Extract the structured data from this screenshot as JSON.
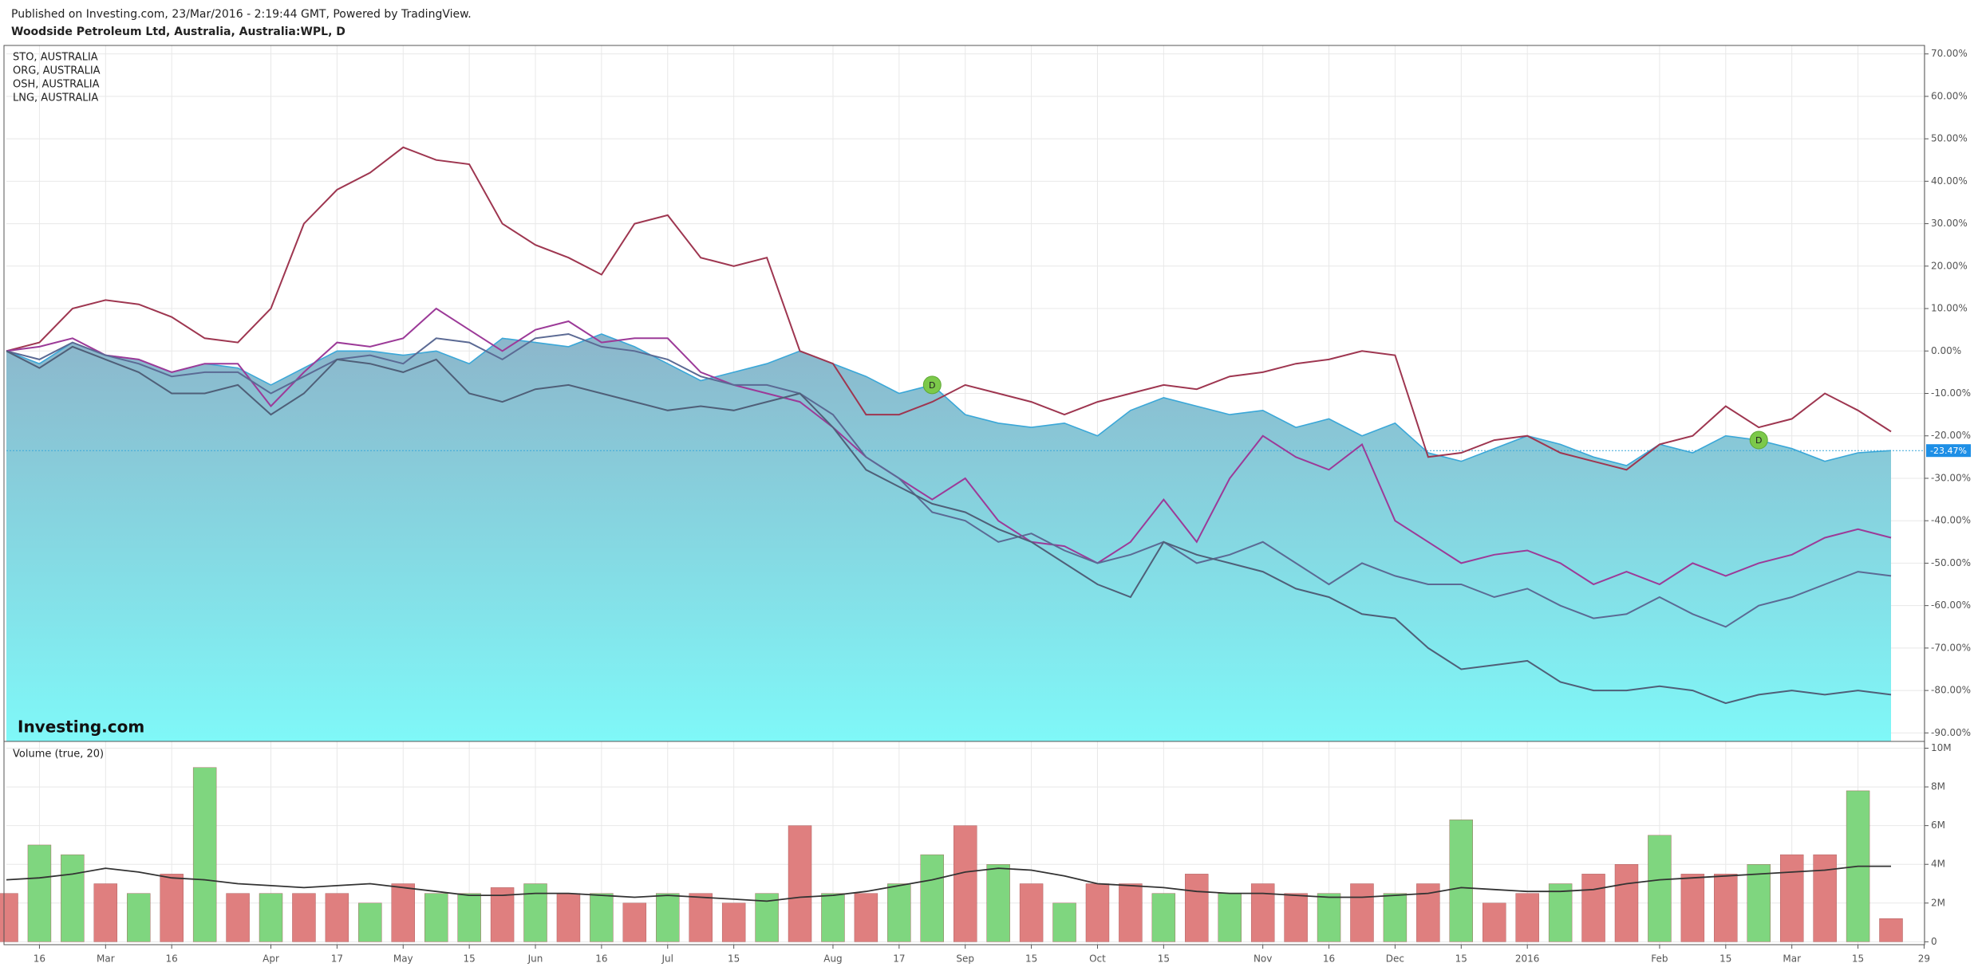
{
  "header": {
    "published": "Published on Investing.com, 23/Mar/2016 - 2:19:44 GMT, Powered by TradingView.",
    "title": "Woodside Petroleum Ltd, Australia, Australia:WPL, D"
  },
  "chart_data": [
    {
      "type": "line",
      "watermark": "Investing.com",
      "grid": true,
      "categories": [
        null,
        "16",
        null,
        "Mar",
        null,
        "16",
        null,
        null,
        "Apr",
        null,
        "17",
        null,
        "May",
        null,
        "15",
        null,
        "Jun",
        null,
        "16",
        null,
        "Jul",
        null,
        "15",
        null,
        null,
        "Aug",
        null,
        "17",
        null,
        "Sep",
        null,
        "15",
        null,
        "Oct",
        null,
        "15",
        null,
        null,
        "Nov",
        null,
        "16",
        null,
        "Dec",
        null,
        "15",
        null,
        "2016",
        null,
        null,
        null,
        "Feb",
        null,
        "15",
        null,
        "Mar",
        null,
        "15",
        null,
        "29"
      ],
      "ylim": [
        -92,
        72
      ],
      "yticks": [
        {
          "value": 70,
          "label": "70.00%"
        },
        {
          "value": 60,
          "label": "60.00%"
        },
        {
          "value": 50,
          "label": "50.00%"
        },
        {
          "value": 40,
          "label": "40.00%"
        },
        {
          "value": 30,
          "label": "30.00%"
        },
        {
          "value": 20,
          "label": "20.00%"
        },
        {
          "value": 10,
          "label": "10.00%"
        },
        {
          "value": 0,
          "label": "0.00%"
        },
        {
          "value": -10,
          "label": "-10.00%"
        },
        {
          "value": -20,
          "label": "-20.00%"
        },
        {
          "value": -30,
          "label": "-30.00%"
        },
        {
          "value": -40,
          "label": "-40.00%"
        },
        {
          "value": -50,
          "label": "-50.00%"
        },
        {
          "value": -60,
          "label": "-60.00%"
        },
        {
          "value": -70,
          "label": "-70.00%"
        },
        {
          "value": -80,
          "label": "-80.00%"
        },
        {
          "value": -90,
          "label": "-90.00%"
        }
      ],
      "series": [
        {
          "color": "#3aa7d8",
          "area": true,
          "last_label": "-23.47%",
          "values": [
            0,
            -3,
            2,
            -1,
            -2,
            -5,
            -3,
            -4,
            -8,
            -4,
            0,
            0,
            -1,
            0,
            -3,
            3,
            2,
            1,
            4,
            1,
            -3,
            -7,
            -5,
            -3,
            0,
            -3,
            -6,
            -10,
            -8,
            -15,
            -17,
            -18,
            -17,
            -20,
            -14,
            -11,
            -13,
            -15,
            -14,
            -18,
            -16,
            -20,
            -17,
            -24,
            -26,
            -23,
            -20,
            -22,
            -25,
            -27,
            -22,
            -24,
            -20,
            -21,
            -23,
            -26,
            -24,
            -23.47,
            null
          ],
          "markers": [
            null,
            null,
            null,
            null,
            null,
            null,
            null,
            null,
            null,
            null,
            null,
            null,
            null,
            null,
            null,
            null,
            null,
            null,
            null,
            null,
            null,
            null,
            null,
            null,
            null,
            null,
            null,
            null,
            "D",
            null,
            null,
            null,
            null,
            null,
            null,
            null,
            null,
            null,
            null,
            null,
            null,
            null,
            null,
            null,
            null,
            null,
            null,
            null,
            null,
            null,
            null,
            null,
            null,
            "D",
            null,
            null,
            null,
            null,
            null
          ]
        },
        {
          "name": "STO, AUSTRALIA",
          "color": "#9e3650",
          "values": [
            0,
            2,
            10,
            12,
            11,
            8,
            3,
            2,
            10,
            30,
            38,
            42,
            48,
            45,
            44,
            30,
            25,
            22,
            18,
            30,
            32,
            22,
            20,
            22,
            0,
            -3,
            -15,
            -15,
            -12,
            -8,
            -10,
            -12,
            -15,
            -12,
            -10,
            -8,
            -9,
            -6,
            -5,
            -3,
            -2,
            0,
            -1,
            -25,
            -24,
            -21,
            -20,
            -24,
            -26,
            -28,
            -22,
            -20,
            -13,
            -18,
            -16,
            -10,
            -14,
            -19,
            null
          ]
        },
        {
          "name": "ORG, AUSTRALIA",
          "color": "#9c3a98",
          "values": [
            0,
            1,
            3,
            -1,
            -2,
            -5,
            -3,
            -3,
            -13,
            -5,
            2,
            1,
            3,
            10,
            5,
            0,
            5,
            7,
            2,
            3,
            3,
            -5,
            -8,
            -10,
            -12,
            -18,
            -25,
            -30,
            -35,
            -30,
            -40,
            -45,
            -46,
            -50,
            -45,
            -35,
            -45,
            -30,
            -20,
            -25,
            -28,
            -22,
            -40,
            -45,
            -50,
            -48,
            -47,
            -50,
            -55,
            -52,
            -55,
            -50,
            -53,
            -50,
            -48,
            -44,
            -42,
            -44,
            null
          ]
        },
        {
          "name": "OSH, AUSTRALIA",
          "color": "#5b6a94",
          "values": [
            0,
            -2,
            2,
            -1,
            -3,
            -6,
            -5,
            -5,
            -10,
            -6,
            -2,
            -1,
            -3,
            3,
            2,
            -2,
            3,
            4,
            1,
            0,
            -2,
            -6,
            -8,
            -8,
            -10,
            -15,
            -25,
            -30,
            -38,
            -40,
            -45,
            -43,
            -47,
            -50,
            -48,
            -45,
            -50,
            -48,
            -45,
            -50,
            -55,
            -50,
            -53,
            -55,
            -55,
            -58,
            -56,
            -60,
            -63,
            -62,
            -58,
            -62,
            -65,
            -60,
            -58,
            -55,
            -52,
            -53,
            null
          ]
        },
        {
          "name": "LNG, AUSTRALIA",
          "color": "#4f5f78",
          "values": [
            0,
            -4,
            1,
            -2,
            -5,
            -10,
            -10,
            -8,
            -15,
            -10,
            -2,
            -3,
            -5,
            -2,
            -10,
            -12,
            -9,
            -8,
            -10,
            -12,
            -14,
            -13,
            -14,
            -12,
            -10,
            -18,
            -28,
            -32,
            -36,
            -38,
            -42,
            -45,
            -50,
            -55,
            -58,
            -45,
            -48,
            -50,
            -52,
            -56,
            -58,
            -62,
            -63,
            -70,
            -75,
            -74,
            -73,
            -78,
            -80,
            -80,
            -79,
            -80,
            -83,
            -81,
            -80,
            -81,
            -80,
            -81,
            null
          ]
        }
      ]
    },
    {
      "type": "bar",
      "title": "Volume (true, 20)",
      "grid": true,
      "ylim": [
        -150000,
        10350000
      ],
      "yticks": [
        0,
        {
          "value": 2000000,
          "label": "2M"
        },
        {
          "value": 4000000,
          "label": "4M"
        },
        {
          "value": 6000000,
          "label": "6M"
        },
        {
          "value": 8000000,
          "label": "8M"
        },
        {
          "value": 10000000,
          "label": "10M"
        }
      ],
      "values": [
        2500000,
        5000000,
        4500000,
        3000000,
        2500000,
        3500000,
        9000000,
        2500000,
        2500000,
        2500000,
        2500000,
        2000000,
        3000000,
        2500000,
        2500000,
        2800000,
        3000000,
        2500000,
        2500000,
        2000000,
        2500000,
        2500000,
        2000000,
        2500000,
        6000000,
        2500000,
        2500000,
        3000000,
        4500000,
        6000000,
        4000000,
        3000000,
        2000000,
        3000000,
        3000000,
        2500000,
        3500000,
        2500000,
        3000000,
        2500000,
        2500000,
        3000000,
        2500000,
        3000000,
        6300000,
        2000000,
        2500000,
        3000000,
        3500000,
        4000000,
        5500000,
        3500000,
        3500000,
        4000000,
        4500000,
        4500000,
        7800000,
        1200000,
        null
      ],
      "colors": [
        "#df7f7f",
        "#7fd67f",
        "#7fd67f",
        "#df7f7f",
        "#7fd67f",
        "#df7f7f",
        "#7fd67f",
        "#df7f7f",
        "#7fd67f",
        "#df7f7f",
        "#df7f7f",
        "#7fd67f",
        "#df7f7f",
        "#7fd67f",
        "#7fd67f",
        "#df7f7f",
        "#7fd67f",
        "#df7f7f",
        "#7fd67f",
        "#df7f7f",
        "#7fd67f",
        "#df7f7f",
        "#df7f7f",
        "#7fd67f",
        "#df7f7f",
        "#7fd67f",
        "#df7f7f",
        "#7fd67f",
        "#7fd67f",
        "#df7f7f",
        "#7fd67f",
        "#df7f7f",
        "#7fd67f",
        "#df7f7f",
        "#df7f7f",
        "#7fd67f",
        "#df7f7f",
        "#7fd67f",
        "#df7f7f",
        "#df7f7f",
        "#7fd67f",
        "#df7f7f",
        "#7fd67f",
        "#df7f7f",
        "#7fd67f",
        "#df7f7f",
        "#df7f7f",
        "#7fd67f",
        "#df7f7f",
        "#df7f7f",
        "#7fd67f",
        "#df7f7f",
        "#df7f7f",
        "#7fd67f",
        "#df7f7f",
        "#df7f7f",
        "#7fd67f",
        "#df7f7f",
        null
      ],
      "average": {
        "color": "#333333",
        "values": [
          3200000,
          3300000,
          3500000,
          3800000,
          3600000,
          3300000,
          3200000,
          3000000,
          2900000,
          2800000,
          2900000,
          3000000,
          2800000,
          2600000,
          2400000,
          2400000,
          2500000,
          2500000,
          2400000,
          2300000,
          2400000,
          2300000,
          2200000,
          2100000,
          2300000,
          2400000,
          2600000,
          2900000,
          3200000,
          3600000,
          3800000,
          3700000,
          3400000,
          3000000,
          2900000,
          2800000,
          2600000,
          2500000,
          2500000,
          2400000,
          2300000,
          2300000,
          2400000,
          2500000,
          2800000,
          2700000,
          2600000,
          2600000,
          2700000,
          3000000,
          3200000,
          3300000,
          3400000,
          3500000,
          3600000,
          3700000,
          3900000,
          3900000,
          null
        ]
      }
    }
  ]
}
